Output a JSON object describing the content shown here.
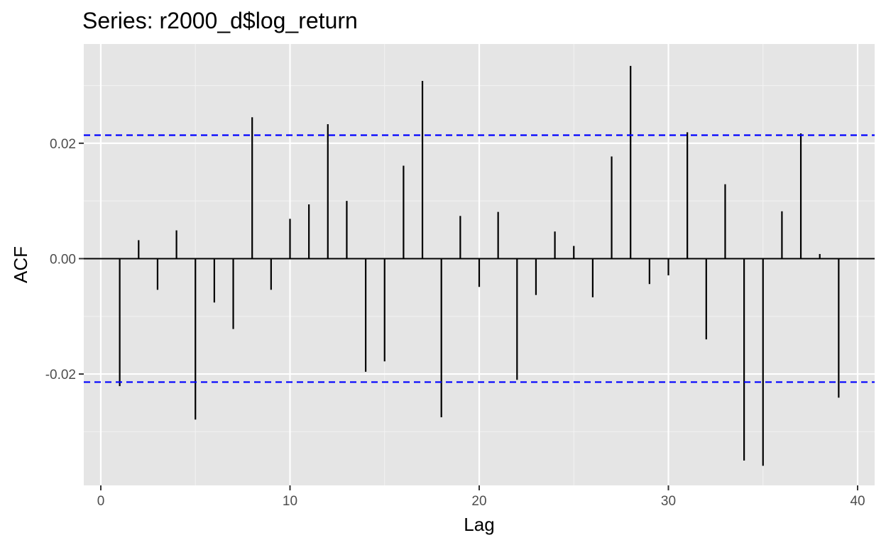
{
  "chart_data": {
    "type": "bar",
    "title": "Series: r2000_d$log_return",
    "xlabel": "Lag",
    "ylabel": "ACF",
    "xlim": [
      -0.9,
      40.9
    ],
    "ylim": [
      -0.0393,
      0.0372
    ],
    "x_ticks": [
      0,
      10,
      20,
      30,
      40
    ],
    "x_tick_labels": [
      "0",
      "10",
      "20",
      "30",
      "40"
    ],
    "y_ticks": [
      -0.02,
      0.0,
      0.02
    ],
    "y_tick_labels": [
      "-0.02",
      "0.00",
      "0.02"
    ],
    "grid": true,
    "confidence_bounds": [
      0.0214,
      -0.0214
    ],
    "confidence_line_color": "#0000ff",
    "bar_color": "#000000",
    "panel_background": "#e5e5e5",
    "lags": [
      1,
      2,
      3,
      4,
      5,
      6,
      7,
      8,
      9,
      10,
      11,
      12,
      13,
      14,
      15,
      16,
      17,
      18,
      19,
      20,
      21,
      22,
      23,
      24,
      25,
      26,
      27,
      28,
      29,
      30,
      31,
      32,
      33,
      34,
      35,
      36,
      37,
      38,
      39
    ],
    "values": [
      -0.0221,
      0.0032,
      -0.0054,
      0.0049,
      -0.0279,
      -0.0076,
      -0.0122,
      0.0245,
      -0.0054,
      0.0069,
      0.0094,
      0.0233,
      0.01,
      -0.0196,
      -0.0178,
      0.0161,
      0.0308,
      -0.0275,
      0.0074,
      -0.0049,
      0.0081,
      -0.021,
      -0.0063,
      0.0047,
      0.0022,
      -0.0067,
      0.0177,
      0.0334,
      -0.0044,
      -0.0029,
      0.0219,
      -0.014,
      0.0129,
      -0.035,
      -0.0359,
      0.0082,
      0.0217,
      0.0008,
      -0.0241
    ]
  }
}
